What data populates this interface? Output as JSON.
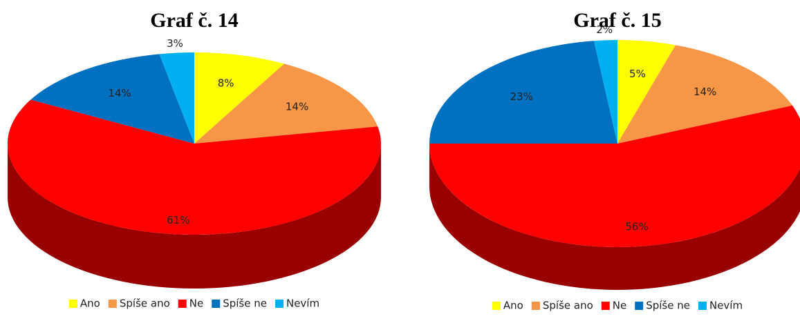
{
  "chart_data": [
    {
      "type": "pie",
      "title": "Graf č. 14",
      "categories": [
        "Ano",
        "Spíše ano",
        "Ne",
        "Spíše ne",
        "Nevím"
      ],
      "values": [
        8,
        14,
        61,
        14,
        3
      ],
      "value_labels": [
        "8%",
        "14%",
        "61%",
        "14%",
        "3%"
      ],
      "colors": [
        "#ffff00",
        "#f79646",
        "#ff0000",
        "#0070c0",
        "#00b0f0"
      ],
      "legend": "bottom"
    },
    {
      "type": "pie",
      "title": "Graf č. 15",
      "categories": [
        "Ano",
        "Spíše ano",
        "Ne",
        "Spíše ne",
        "Nevím"
      ],
      "values": [
        5,
        14,
        56,
        23,
        2
      ],
      "value_labels": [
        "5%",
        "14%",
        "56%",
        "23%",
        "2%"
      ],
      "colors": [
        "#ffff00",
        "#f79646",
        "#ff0000",
        "#0070c0",
        "#00b0f0"
      ],
      "legend": "bottom"
    }
  ]
}
